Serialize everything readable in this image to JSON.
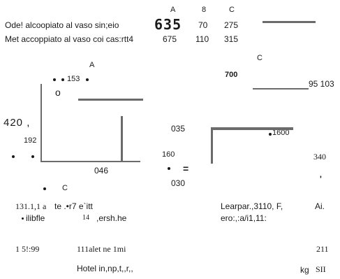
{
  "top_table": {
    "headers": [
      "A",
      "8",
      "C"
    ],
    "rows": [
      {
        "label": "Ode! alcoopiato al vaso sin;eio",
        "a": "635",
        "b": "70",
        "c": "275"
      },
      {
        "label": "Met accoppiato al vaso coi cas:rtt4",
        "a": "675",
        "b": "110",
        "c": "315"
      }
    ]
  },
  "left_panel": {
    "header": "A",
    "dots_label": "153",
    "o_mark": "o",
    "value_left_big": "420 ,",
    "value_192": "192",
    "axis_value": "046",
    "bottom_c": "C"
  },
  "middle": {
    "v035": "035",
    "v160": "160",
    "eq": "=",
    "v030": "030"
  },
  "right_panel": {
    "header": "C",
    "v700": "700",
    "v95103": "95 103",
    "v1600": "1600",
    "v340": "340",
    "tick": "'"
  },
  "bottom": {
    "row1_left": "131.1,1 a",
    "row1_mid": "te .•r7 e`itt",
    "row1_right": "Learpar.,3110, F,",
    "row1_right2": "Ai.",
    "row2_left": "ilibfle",
    "row2_mid_num": "14",
    "row2_mid": ",ersh.he",
    "row2_right": "ero:,:a/i1,11:",
    "row3_left": "1 5!:99",
    "row3_mid": "111alet ne 1mi",
    "row3_right": "211",
    "row4_mid": "Hotel in,np,t,,r,,",
    "row4_right": "kg",
    "row4_right2": "SII"
  }
}
